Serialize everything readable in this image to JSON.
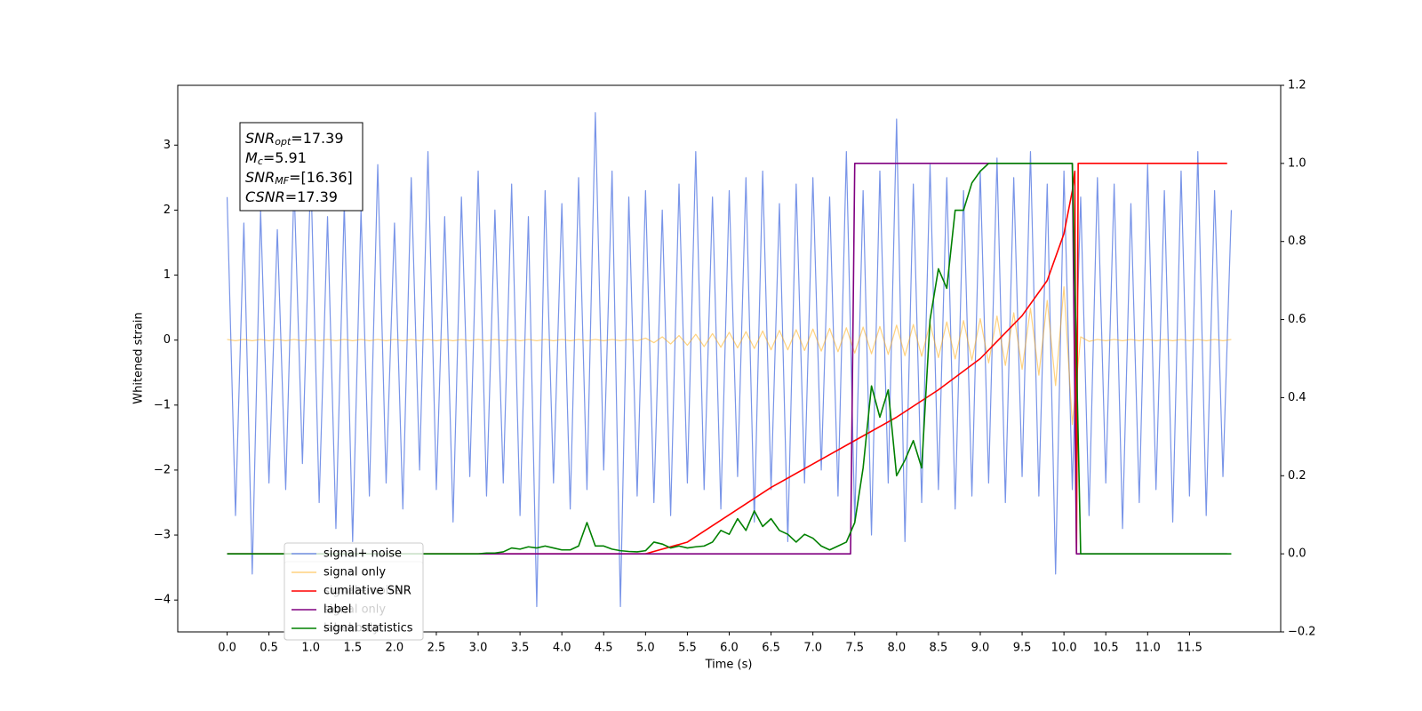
{
  "chart_data": {
    "type": "line",
    "xlabel": "Time (s)",
    "ylabel": "Whitened strain",
    "xlim": [
      -0.59,
      12.59
    ],
    "ylim": [
      -4.49,
      3.92
    ],
    "y2lim": [
      -0.2,
      1.2
    ],
    "xticks": [
      {
        "value": 0,
        "label": "0.0"
      },
      {
        "value": 0.5,
        "label": "0.5"
      },
      {
        "value": 1,
        "label": "1.0"
      },
      {
        "value": 1.5,
        "label": "1.5"
      },
      {
        "value": 2,
        "label": "2.0"
      },
      {
        "value": 2.5,
        "label": "2.5"
      },
      {
        "value": 3,
        "label": "3.0"
      },
      {
        "value": 3.5,
        "label": "3.5"
      },
      {
        "value": 4,
        "label": "4.0"
      },
      {
        "value": 4.5,
        "label": "4.5"
      },
      {
        "value": 5,
        "label": "5.0"
      },
      {
        "value": 5.5,
        "label": "5.5"
      },
      {
        "value": 6,
        "label": "6.0"
      },
      {
        "value": 6.5,
        "label": "6.5"
      },
      {
        "value": 7,
        "label": "7.0"
      },
      {
        "value": 7.5,
        "label": "7.5"
      },
      {
        "value": 8,
        "label": "8.0"
      },
      {
        "value": 8.5,
        "label": "8.5"
      },
      {
        "value": 9,
        "label": "9.0"
      },
      {
        "value": 9.5,
        "label": "9.5"
      },
      {
        "value": 10,
        "label": "10.0"
      },
      {
        "value": 10.5,
        "label": "10.5"
      },
      {
        "value": 11,
        "label": "11.0"
      },
      {
        "value": 11.5,
        "label": "11.5"
      }
    ],
    "yticks": [
      {
        "value": -4,
        "label": "−4"
      },
      {
        "value": -3,
        "label": "−3"
      },
      {
        "value": -2,
        "label": "−2"
      },
      {
        "value": -1,
        "label": "−1"
      },
      0,
      1,
      2,
      3
    ],
    "y2ticks": [
      {
        "value": -0.2,
        "label": "−0.2"
      },
      {
        "value": 0,
        "label": "0.0"
      },
      0.2,
      0.4,
      0.6,
      0.8,
      {
        "value": 1,
        "label": "1.0"
      },
      1.2
    ],
    "annotation": [
      {
        "symbol": "SNR",
        "subscript": "opt",
        "text": "=17.39"
      },
      {
        "symbol": "M",
        "subscript": "c",
        "text": "=5.91"
      },
      {
        "symbol": "SNR",
        "subscript": "MF",
        "text": "=[16.36]"
      },
      {
        "symbol": "CSNR",
        "subscript": null,
        "text": "=17.39"
      }
    ],
    "second_legend": [
      "signal+ noise",
      "signal only",
      "label only"
    ],
    "x": [
      0,
      0.1,
      0.2,
      0.3,
      0.4,
      0.5,
      0.6,
      0.7,
      0.8,
      0.9,
      1,
      1.1,
      1.2,
      1.3,
      1.4,
      1.5,
      1.6,
      1.7,
      1.8,
      1.9,
      2,
      2.1,
      2.2,
      2.3,
      2.4,
      2.5,
      2.6,
      2.7,
      2.8,
      2.9,
      3,
      3.1,
      3.2,
      3.3,
      3.4,
      3.5,
      3.6,
      3.7,
      3.8,
      3.9,
      4,
      4.1,
      4.2,
      4.3,
      4.4,
      4.5,
      4.6,
      4.7,
      4.8,
      4.9,
      5,
      5.1,
      5.2,
      5.3,
      5.4,
      5.5,
      5.6,
      5.7,
      5.8,
      5.9,
      6,
      6.1,
      6.2,
      6.3,
      6.4,
      6.5,
      6.6,
      6.7,
      6.8,
      6.9,
      7,
      7.1,
      7.2,
      7.3,
      7.4,
      7.5,
      7.6,
      7.7,
      7.8,
      7.9,
      8,
      8.1,
      8.2,
      8.3,
      8.4,
      8.5,
      8.6,
      8.7,
      8.8,
      8.9,
      9,
      9.1,
      9.2,
      9.3,
      9.4,
      9.5,
      9.6,
      9.7,
      9.8,
      9.9,
      10,
      10.1,
      10.2,
      10.3,
      10.4,
      10.5,
      10.6,
      10.7,
      10.8,
      10.9,
      11,
      11.1,
      11.2,
      11.3,
      11.4,
      11.5,
      11.6,
      11.7,
      11.8,
      11.9,
      12
    ],
    "series": [
      {
        "name": "signal+ noise",
        "color": "#7894e8",
        "axis": "y",
        "values": [
          2.2,
          -2.7,
          1.8,
          -3.6,
          2.0,
          -2.2,
          1.7,
          -2.3,
          2.4,
          -1.9,
          2.6,
          -2.5,
          1.9,
          -2.9,
          2.1,
          -3.1,
          2.0,
          -2.4,
          2.7,
          -2.2,
          1.8,
          -2.6,
          2.5,
          -2.0,
          2.9,
          -2.3,
          1.9,
          -2.8,
          2.2,
          -2.1,
          2.6,
          -2.4,
          2.0,
          -2.2,
          2.4,
          -2.7,
          1.9,
          -4.1,
          2.3,
          -2.2,
          2.1,
          -2.6,
          2.5,
          -2.3,
          3.5,
          -2.0,
          2.6,
          -4.1,
          2.2,
          -2.4,
          2.3,
          -2.5,
          2.0,
          -2.7,
          2.4,
          -2.2,
          2.9,
          -2.3,
          2.2,
          -2.6,
          2.3,
          -2.1,
          2.5,
          -2.8,
          2.6,
          -2.3,
          2.1,
          -3.1,
          2.4,
          -2.2,
          2.5,
          -2.0,
          2.2,
          -2.4,
          2.9,
          -2.8,
          2.3,
          -3.0,
          2.6,
          -2.2,
          3.4,
          -3.1,
          2.4,
          -2.5,
          2.7,
          -2.3,
          2.5,
          -2.6,
          2.3,
          -2.4,
          2.6,
          -2.2,
          2.8,
          -2.5,
          2.5,
          -2.1,
          2.9,
          -2.4,
          2.4,
          -3.6,
          2.6,
          -2.3,
          2.2,
          -2.7,
          2.5,
          -2.2,
          2.4,
          -2.9,
          2.1,
          -2.5,
          2.7,
          -2.3,
          2.3,
          -2.8,
          2.6,
          -2.4,
          2.9,
          -2.7,
          2.3,
          -2.1,
          2.0
        ]
      },
      {
        "name": "signal only",
        "color": "#ffa500",
        "axis": "y",
        "values": [
          0.01,
          -0.01,
          0.01,
          -0.01,
          0.01,
          -0.01,
          0.01,
          -0.01,
          0.01,
          -0.01,
          0.01,
          -0.01,
          0.01,
          -0.01,
          0.01,
          -0.01,
          0.01,
          -0.01,
          0.01,
          -0.01,
          0.01,
          -0.01,
          0.01,
          -0.01,
          0.01,
          -0.01,
          0.01,
          -0.01,
          0.01,
          -0.01,
          0.01,
          -0.01,
          0.01,
          -0.01,
          0.01,
          -0.01,
          0.01,
          -0.01,
          0.01,
          -0.01,
          0.01,
          -0.01,
          0.01,
          -0.01,
          0.01,
          -0.01,
          0.01,
          -0.01,
          0.01,
          -0.01,
          0.03,
          -0.04,
          0.05,
          -0.06,
          0.07,
          -0.08,
          0.09,
          -0.1,
          0.1,
          -0.11,
          0.12,
          -0.12,
          0.13,
          -0.13,
          0.14,
          -0.15,
          0.15,
          -0.15,
          0.16,
          -0.16,
          0.17,
          -0.17,
          0.18,
          -0.18,
          0.19,
          -0.2,
          0.2,
          -0.21,
          0.21,
          -0.22,
          0.23,
          -0.24,
          0.24,
          -0.25,
          0.26,
          -0.27,
          0.28,
          -0.29,
          0.3,
          -0.31,
          0.33,
          -0.35,
          0.37,
          -0.39,
          0.42,
          -0.45,
          0.49,
          -0.54,
          0.61,
          -0.7,
          0.82,
          -1.3,
          0.05,
          -0.02,
          0.01,
          -0.01,
          0.01,
          -0.01,
          0.01,
          -0.01,
          0.01,
          -0.01,
          0.01,
          -0.01,
          0.01,
          -0.01,
          0.01,
          -0.01,
          0.01,
          -0.01,
          0.01
        ]
      },
      {
        "name": "cumilative SNR",
        "color": "red",
        "axis": "y2",
        "x": [
          0,
          5.0,
          5.5,
          6.0,
          6.5,
          7.0,
          7.5,
          8.0,
          8.5,
          9.0,
          9.5,
          9.8,
          10.0,
          10.1,
          10.13,
          10.15,
          10.17,
          11.95
        ],
        "values": [
          0,
          0,
          0.03,
          0.1,
          0.17,
          0.23,
          0.29,
          0.35,
          0.42,
          0.5,
          0.61,
          0.7,
          0.82,
          0.93,
          0.98,
          0,
          1,
          1
        ]
      },
      {
        "name": "label",
        "color": "purple",
        "axis": "y2",
        "x": [
          0,
          7.45,
          7.5,
          10.1,
          10.15,
          11.95
        ],
        "values": [
          0,
          0,
          1,
          1,
          0,
          0
        ]
      },
      {
        "name": "signal statistics",
        "color": "green",
        "axis": "y2",
        "values": [
          0,
          0,
          0,
          0,
          0,
          0,
          0,
          0,
          0,
          0,
          0,
          0,
          0,
          0,
          0,
          0,
          0,
          0,
          0,
          0,
          0,
          0,
          0,
          0,
          0,
          0,
          0,
          0,
          0,
          0,
          0,
          0.002,
          0.002,
          0.005,
          0.015,
          0.012,
          0.018,
          0.015,
          0.02,
          0.015,
          0.01,
          0.01,
          0.02,
          0.08,
          0.02,
          0.02,
          0.012,
          0.008,
          0.006,
          0.005,
          0.008,
          0.03,
          0.025,
          0.015,
          0.02,
          0.015,
          0.018,
          0.02,
          0.03,
          0.06,
          0.05,
          0.09,
          0.06,
          0.11,
          0.07,
          0.09,
          0.06,
          0.05,
          0.03,
          0.05,
          0.04,
          0.02,
          0.01,
          0.02,
          0.03,
          0.08,
          0.22,
          0.43,
          0.35,
          0.42,
          0.2,
          0.24,
          0.29,
          0.22,
          0.6,
          0.73,
          0.68,
          0.88,
          0.88,
          0.95,
          0.98,
          1,
          1,
          1,
          1,
          1,
          1,
          1,
          1,
          1,
          1,
          1,
          0,
          0,
          0,
          0,
          0,
          0,
          0,
          0,
          0,
          0,
          0,
          0,
          0,
          0,
          0,
          0,
          0,
          0,
          0
        ]
      }
    ]
  }
}
